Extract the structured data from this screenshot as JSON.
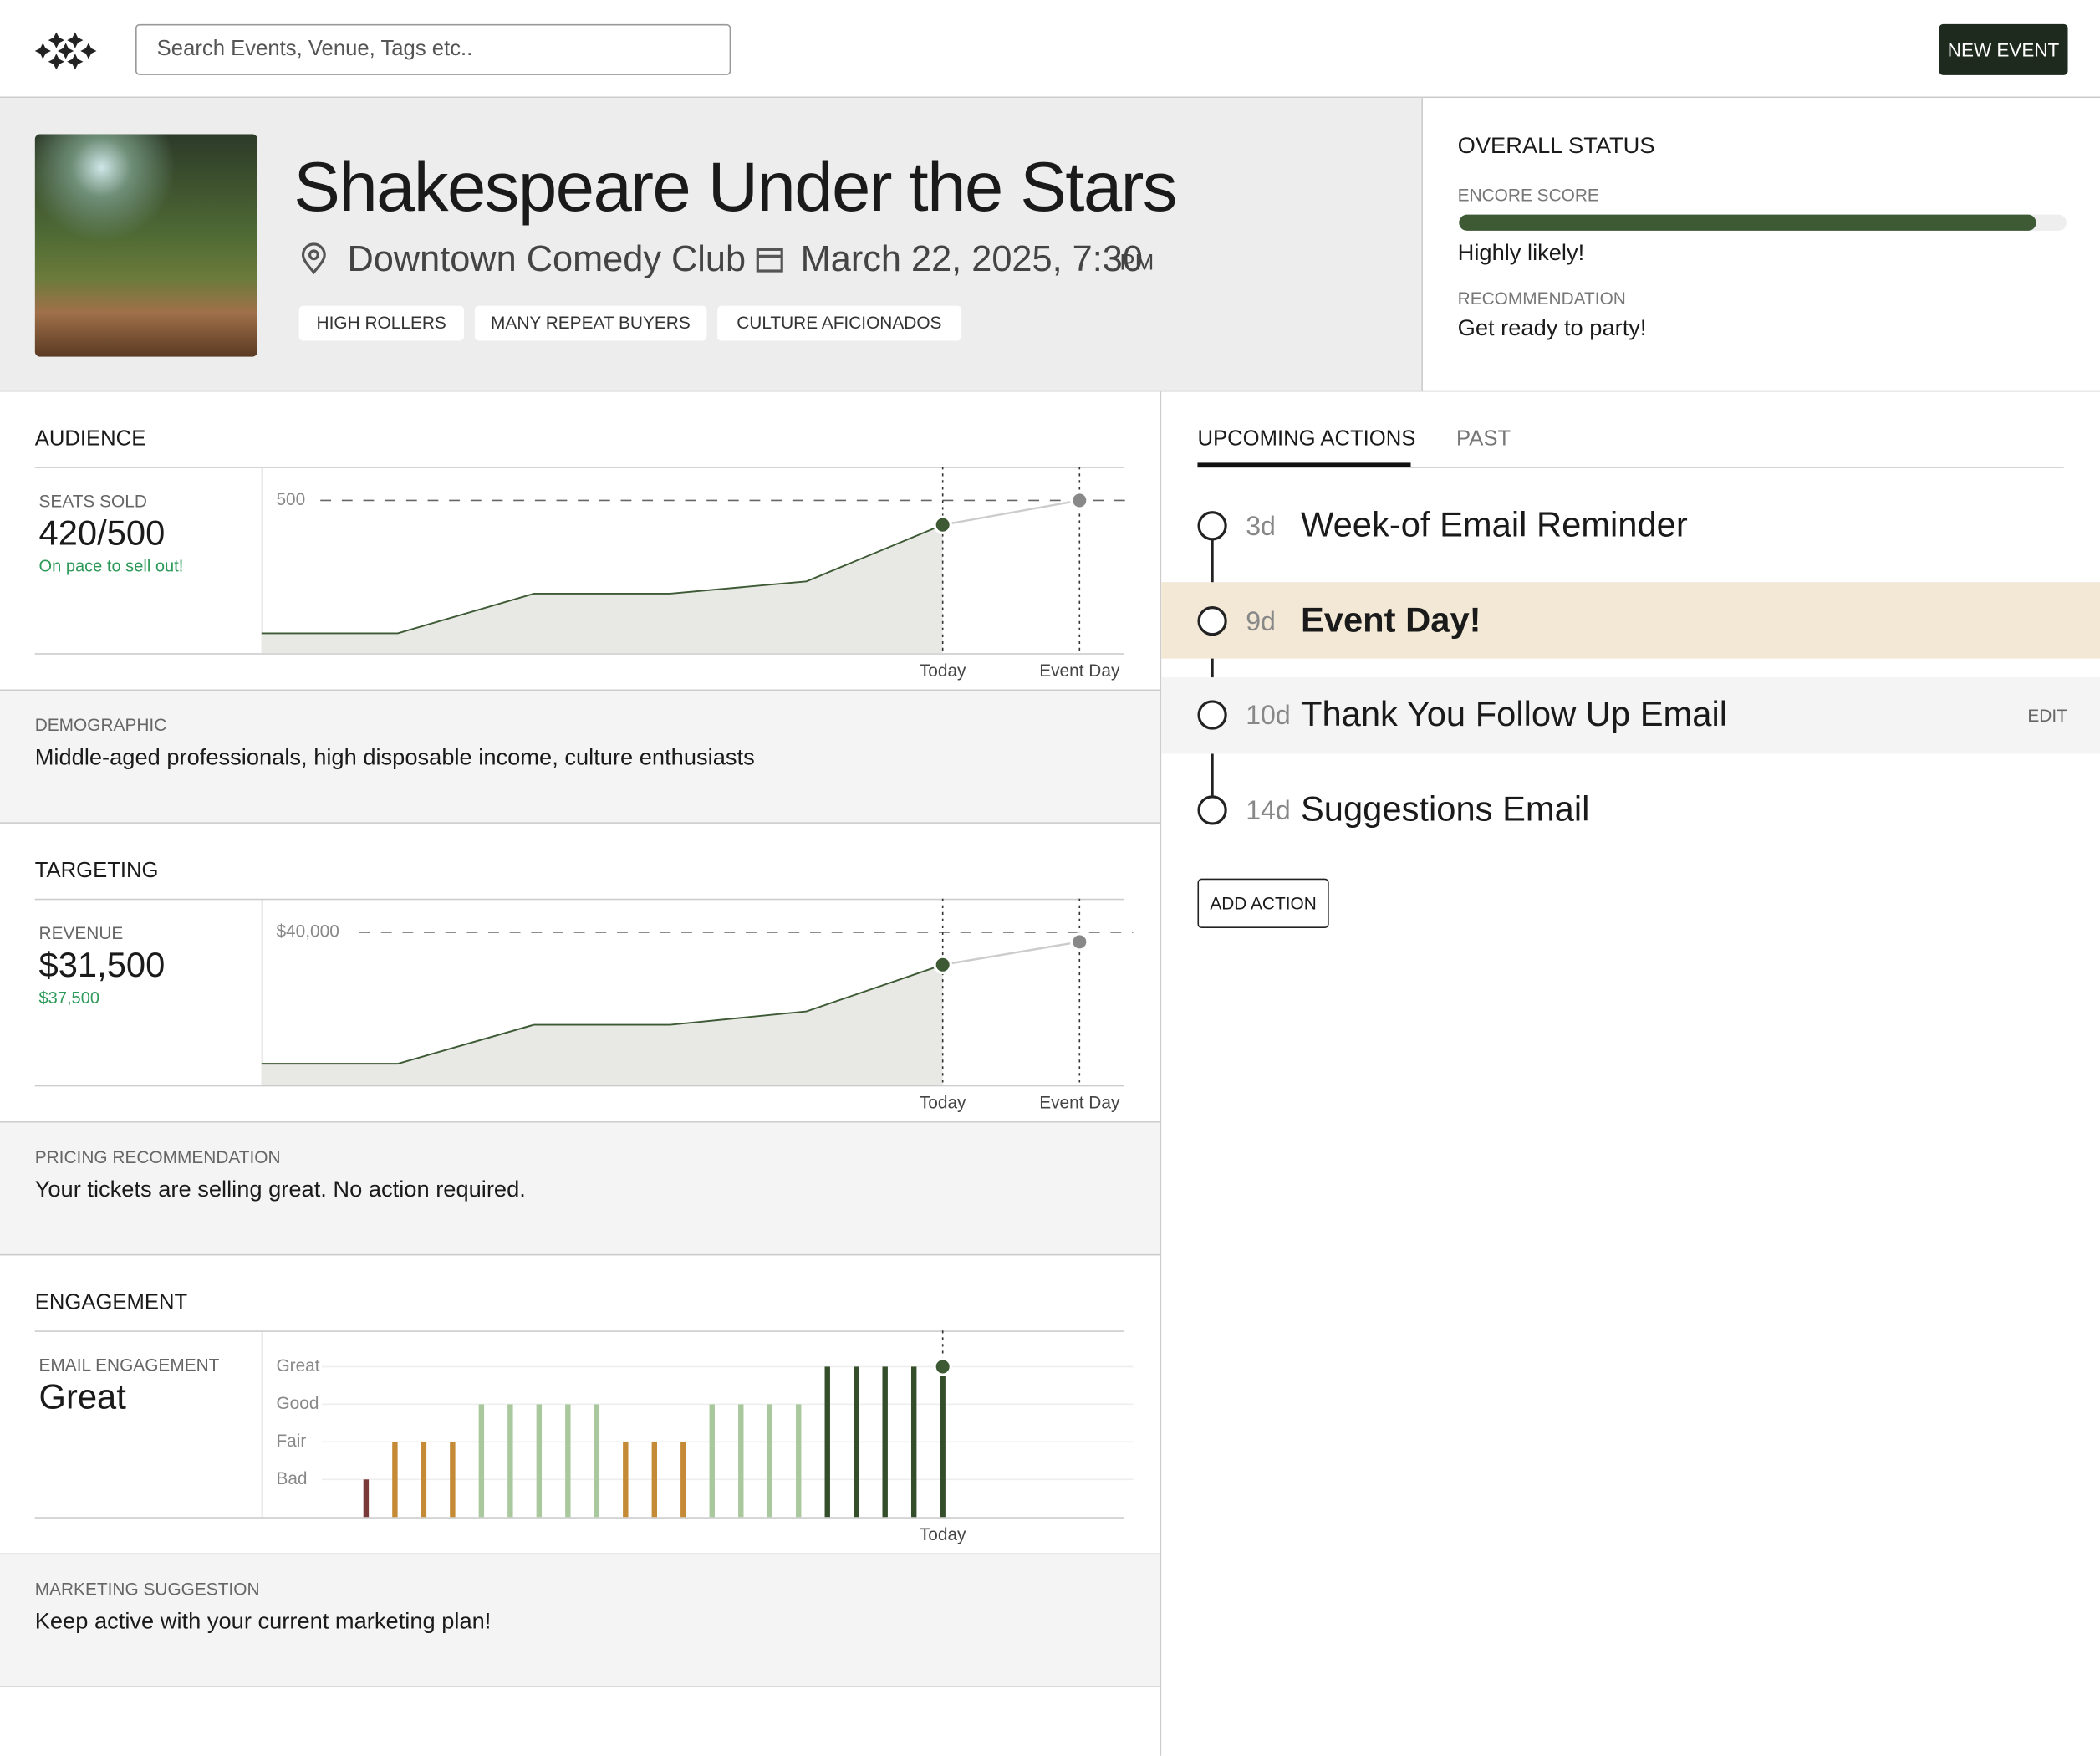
{
  "header": {
    "search_placeholder": "Search Events, Venue, Tags etc..",
    "new_event": "NEW EVENT"
  },
  "event": {
    "title": "Shakespeare Under the Stars",
    "venue": "Downtown Comedy Club",
    "date": "March 22, 2025, 7:30",
    "ampm": "PM",
    "tags": [
      "HIGH ROLLERS",
      "MANY REPEAT BUYERS",
      "CULTURE AFICIONADOS"
    ]
  },
  "status": {
    "heading": "OVERALL STATUS",
    "score_label": "ENCORE SCORE",
    "score": 95,
    "xlim": [
      0,
      100
    ],
    "score_text": "Highly likely!",
    "rec_label": "RECOMMENDATION",
    "rec_text": "Get ready to party!"
  },
  "audience": {
    "heading": "AUDIENCE",
    "metric_label": "SEATS SOLD",
    "metric": "420/500",
    "note": "On pace to sell out!",
    "chart": {
      "type": "area",
      "values": [
        65,
        65,
        195,
        195,
        235,
        420
      ],
      "projection": [
        420,
        500
      ],
      "ylim": [
        0,
        610
      ],
      "yticks": [
        500
      ],
      "x_labels": [
        "Today",
        "Event Day"
      ]
    },
    "footer_label": "DEMOGRAPHIC",
    "footer_text": "Middle-aged professionals, high disposable income, culture enthusiasts"
  },
  "targeting": {
    "heading": "TARGETING",
    "metric_label": "REVENUE",
    "metric": "$31,500",
    "note": "$37,500",
    "chart": {
      "type": "area",
      "values": [
        5600,
        5600,
        15800,
        15800,
        19300,
        31500
      ],
      "projection": [
        31500,
        37500
      ],
      "ylim": [
        0,
        48800
      ],
      "yticks": [
        {
          "value": 40000,
          "label": "$40,000"
        }
      ],
      "x_labels": [
        "Today",
        "Event Day"
      ]
    },
    "footer_label": "PRICING RECOMMENDATION",
    "footer_text": "Your tickets are selling great. No action required."
  },
  "engagement": {
    "heading": "ENGAGEMENT",
    "metric_label": "EMAIL ENGAGEMENT",
    "metric": "Great",
    "chart": {
      "type": "bar",
      "values": [
        1,
        2,
        2,
        2,
        3,
        3,
        3,
        3,
        3,
        2,
        2,
        2,
        3,
        3,
        3,
        3,
        4,
        4,
        4,
        4,
        4
      ],
      "colors": [
        "#7a3a3a",
        "#c48a35",
        "#aac89e",
        "#344d2b"
      ],
      "ylim": [
        0,
        4.96
      ],
      "yticks": [
        {
          "value": 1,
          "label": "Bad"
        },
        {
          "value": 2,
          "label": "Fair"
        },
        {
          "value": 3,
          "label": "Good"
        },
        {
          "value": 4,
          "label": "Great"
        }
      ],
      "x_labels": [
        "Today"
      ]
    },
    "footer_label": "MARKETING SUGGESTION",
    "footer_text": "Keep active with your current marketing plan!"
  },
  "actions": {
    "tabs": [
      "UPCOMING ACTIONS",
      "PAST"
    ],
    "items": [
      {
        "days": "3d",
        "label": "Week-of Email Reminder"
      },
      {
        "days": "9d",
        "label": "Event Day!"
      },
      {
        "days": "10d",
        "label": "Thank You Follow Up Email"
      },
      {
        "days": "14d",
        "label": "Suggestions Email"
      }
    ],
    "edit": "EDIT",
    "add": "ADD ACTION"
  }
}
